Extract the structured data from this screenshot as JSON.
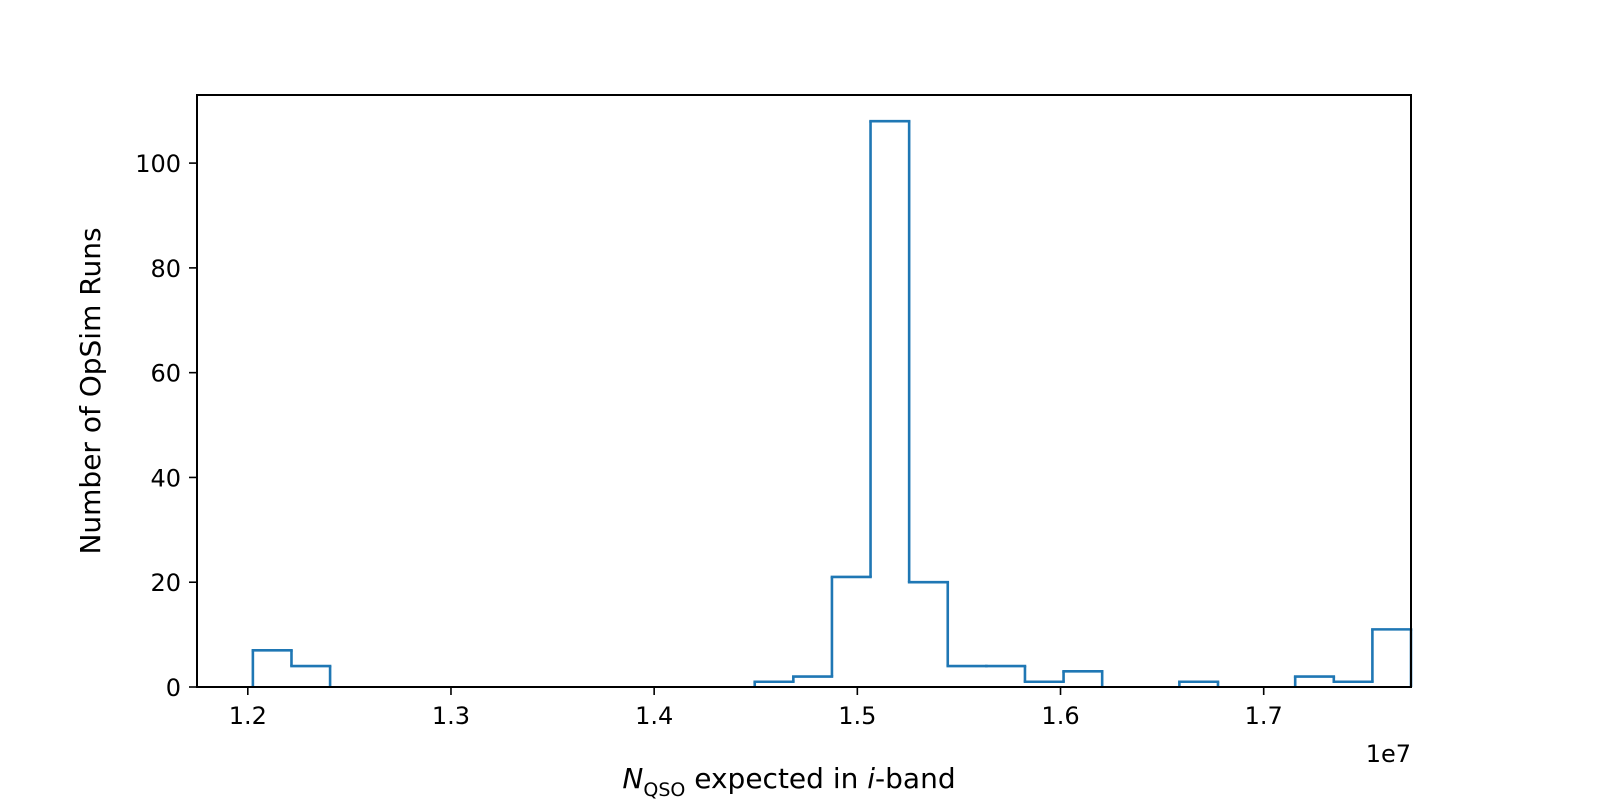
{
  "chart_data": {
    "type": "histogram",
    "style": "step",
    "color": "#1f77b4",
    "bin_edges": [
      1.2025,
      1.2215,
      1.2405,
      1.2595,
      1.2785,
      1.2975,
      1.3165,
      1.3355,
      1.3545,
      1.3735,
      1.3925,
      1.4115,
      1.4305,
      1.4495,
      1.4685,
      1.4875,
      1.5065,
      1.5255,
      1.5445,
      1.5635,
      1.5825,
      1.6015,
      1.6205,
      1.6395,
      1.6585,
      1.6775,
      1.6965,
      1.7155,
      1.7345,
      1.7535,
      1.7725
    ],
    "counts": [
      7,
      4,
      0,
      0,
      0,
      0,
      0,
      0,
      0,
      0,
      0,
      0,
      0,
      1,
      2,
      21,
      108,
      20,
      4,
      4,
      1,
      3,
      0,
      0,
      1,
      0,
      0,
      2,
      1,
      11
    ],
    "xlim": [
      1.175,
      1.7725
    ],
    "ylim": [
      0,
      113
    ],
    "xticks": [
      1.2,
      1.3,
      1.4,
      1.5,
      1.6,
      1.7
    ],
    "xtick_labels": [
      "1.2",
      "1.3",
      "1.4",
      "1.5",
      "1.6",
      "1.7"
    ],
    "yticks": [
      0,
      20,
      40,
      60,
      80,
      100
    ],
    "ytick_labels": [
      "0",
      "20",
      "40",
      "60",
      "80",
      "100"
    ],
    "x_offset_label": "1e7",
    "xlabel": {
      "symbol": "N",
      "subscript": "QSO",
      "middle": " expected in ",
      "italic": "i",
      "suffix": "-band"
    },
    "ylabel": "Number of OpSim Runs",
    "grid": false,
    "legend": "none"
  }
}
